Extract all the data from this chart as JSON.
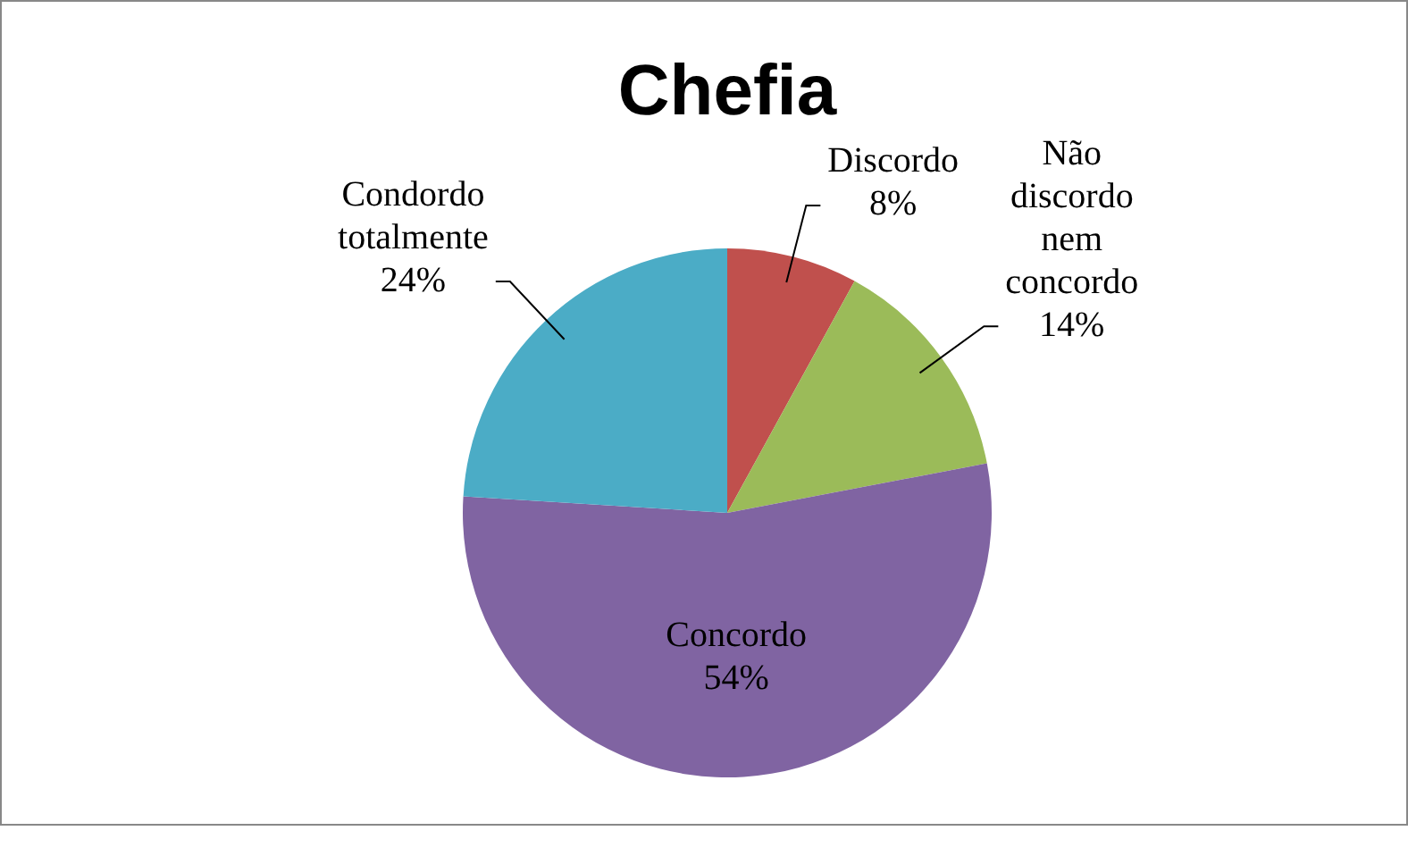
{
  "chart_data": {
    "type": "pie",
    "title": "Chefia",
    "categories": [
      "Discordo",
      "Não discordo nem concordo",
      "Concordo",
      "Condordo totalmente"
    ],
    "values": [
      8,
      14,
      54,
      24
    ],
    "colors": [
      "#c0504d",
      "#9bbb59",
      "#8064a2",
      "#4bacc6"
    ],
    "value_labels": [
      "8%",
      "14%",
      "54%",
      "24%"
    ]
  }
}
